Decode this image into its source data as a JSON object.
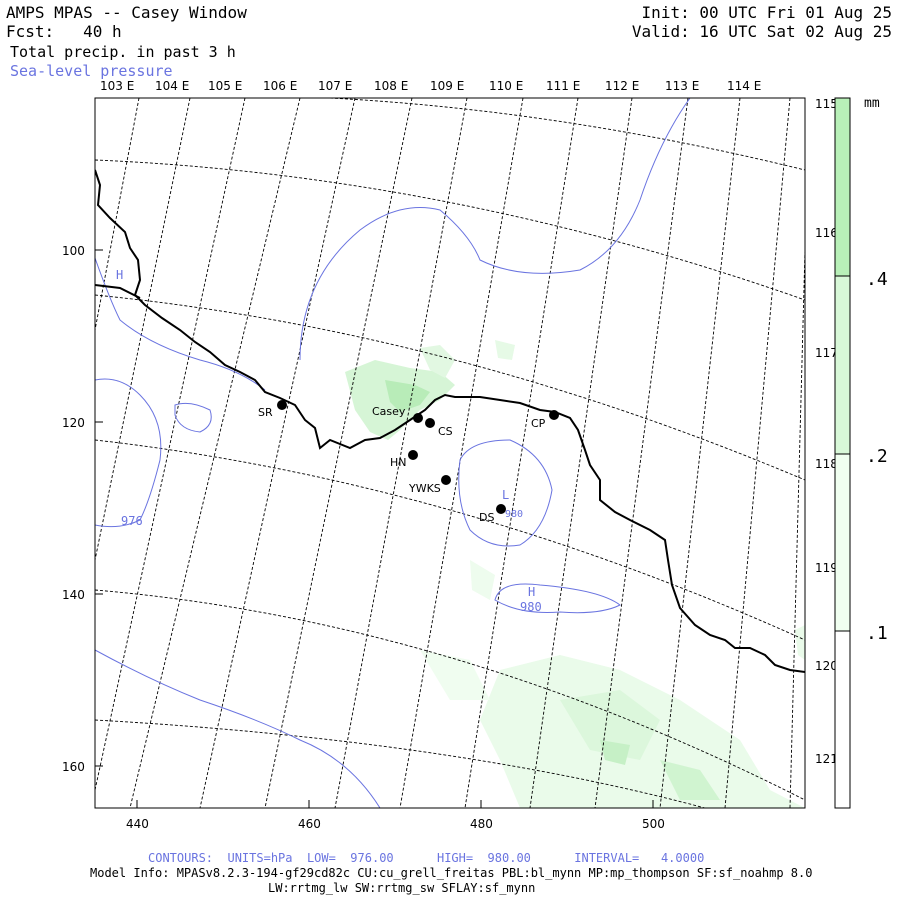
{
  "header": {
    "title": "AMPS MPAS -- Casey Window",
    "forecast": "Fcst:   40 h",
    "field": "Total precip. in past 3 h",
    "overlay": "Sea-level pressure",
    "init": "Init: 00 UTC Fri 01 Aug 25",
    "valid": "Valid: 16 UTC Sat 02 Aug 25"
  },
  "axes": {
    "x_ticks": [
      "440",
      "460",
      "480",
      "500"
    ],
    "y_ticks": [
      "100",
      "120",
      "140",
      "160"
    ],
    "lon_labels_top": [
      "103 E",
      "104 E",
      "105 E",
      "106 E",
      "107 E",
      "108 E",
      "109 E",
      "110 E",
      "111 E",
      "112 E",
      "113 E",
      "114 E"
    ],
    "lon_labels_right": [
      "115 E",
      "116 E",
      "117 E",
      "118 E",
      "119 E",
      "120 E",
      "121 E"
    ]
  },
  "colorbar": {
    "unit": "mm",
    "labels": [
      ".4",
      ".2",
      ".1"
    ],
    "colors": [
      "#b8f0b8",
      "#d8f8d8",
      "#f0fff0"
    ]
  },
  "stations": [
    {
      "name": "SR"
    },
    {
      "name": "Casey"
    },
    {
      "name": "CS"
    },
    {
      "name": "CP"
    },
    {
      "name": "HN"
    },
    {
      "name": "YWKS"
    },
    {
      "name": "DS"
    }
  ],
  "contour_labels": {
    "high1": "H",
    "low1": "L",
    "high2": "H",
    "value976": "976",
    "value980": "980",
    "value980b": "980"
  },
  "footer": {
    "contours": "CONTOURS:  UNITS=hPa  LOW=  976.00      HIGH=  980.00      INTERVAL=   4.0000",
    "model_info": "Model Info: MPASv8.2.3-194-gf29cd82c CU:cu_grell_freitas PBL:bl_mynn MP:mp_thompson SF:sf_noahmp 8.0",
    "model_info2": "LW:rrtmg_lw SW:rrtmg_sw SFLAY:sf_mynn"
  },
  "colors": {
    "precip_light": "#e8fbe8",
    "precip_mid": "#c8f2c8",
    "precip_strong": "#a8e8a8",
    "pressure_contour": "#6a74e0",
    "coastline": "#000000"
  }
}
